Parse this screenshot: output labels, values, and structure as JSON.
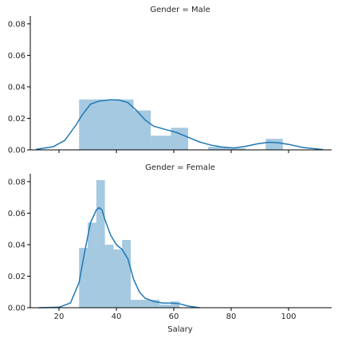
{
  "chart_data": {
    "type": "histogram-kde-facets",
    "x_label": "Salary",
    "x_ticks": [
      20,
      40,
      60,
      80,
      100
    ],
    "x_range": [
      10,
      115
    ],
    "y_ticks": [
      0.0,
      0.02,
      0.04,
      0.06,
      0.08
    ],
    "y_range": [
      0,
      0.085
    ],
    "colors": {
      "bar": "#1f77b4",
      "kde": "#1f77b4"
    },
    "facets": [
      {
        "title": "Gender = Male",
        "histogram": [
          {
            "x0": 27,
            "x1": 40,
            "density": 0.032
          },
          {
            "x0": 40,
            "x1": 46,
            "density": 0.032
          },
          {
            "x0": 46,
            "x1": 52,
            "density": 0.025
          },
          {
            "x0": 52,
            "x1": 59,
            "density": 0.009
          },
          {
            "x0": 59,
            "x1": 65,
            "density": 0.014
          },
          {
            "x0": 65,
            "x1": 72,
            "density": 0.0
          },
          {
            "x0": 72,
            "x1": 79,
            "density": 0.002
          },
          {
            "x0": 79,
            "x1": 85,
            "density": 0.001
          },
          {
            "x0": 85,
            "x1": 92,
            "density": 0.0
          },
          {
            "x0": 92,
            "x1": 98,
            "density": 0.007
          }
        ],
        "kde": [
          [
            12,
            0.0003
          ],
          [
            18,
            0.002
          ],
          [
            22,
            0.006
          ],
          [
            26,
            0.016
          ],
          [
            28,
            0.022
          ],
          [
            31,
            0.029
          ],
          [
            34,
            0.031
          ],
          [
            38,
            0.0318
          ],
          [
            41,
            0.0316
          ],
          [
            44,
            0.03
          ],
          [
            47,
            0.025
          ],
          [
            50,
            0.019
          ],
          [
            53,
            0.015
          ],
          [
            57,
            0.013
          ],
          [
            61,
            0.011
          ],
          [
            65,
            0.008
          ],
          [
            69,
            0.005
          ],
          [
            73,
            0.003
          ],
          [
            77,
            0.0018
          ],
          [
            81,
            0.0012
          ],
          [
            85,
            0.0022
          ],
          [
            89,
            0.0038
          ],
          [
            93,
            0.0048
          ],
          [
            96,
            0.0046
          ],
          [
            100,
            0.0035
          ],
          [
            105,
            0.0015
          ],
          [
            112,
            0.0002
          ]
        ]
      },
      {
        "title": "Gender = Female",
        "histogram": [
          {
            "x0": 27,
            "x1": 30,
            "density": 0.038
          },
          {
            "x0": 30,
            "x1": 33,
            "density": 0.054
          },
          {
            "x0": 33,
            "x1": 36,
            "density": 0.081
          },
          {
            "x0": 36,
            "x1": 39,
            "density": 0.04
          },
          {
            "x0": 39,
            "x1": 42,
            "density": 0.037
          },
          {
            "x0": 42,
            "x1": 45,
            "density": 0.043
          },
          {
            "x0": 45,
            "x1": 50,
            "density": 0.005
          },
          {
            "x0": 50,
            "x1": 55,
            "density": 0.005
          },
          {
            "x0": 55,
            "x1": 59,
            "density": 0.002
          },
          {
            "x0": 59,
            "x1": 62,
            "density": 0.004
          }
        ],
        "kde": [
          [
            13,
            0.0
          ],
          [
            20,
            0.0003
          ],
          [
            24,
            0.003
          ],
          [
            27,
            0.016
          ],
          [
            29,
            0.036
          ],
          [
            31,
            0.054
          ],
          [
            33,
            0.062
          ],
          [
            34,
            0.0635
          ],
          [
            35,
            0.062
          ],
          [
            36,
            0.056
          ],
          [
            38,
            0.046
          ],
          [
            40,
            0.04
          ],
          [
            42,
            0.037
          ],
          [
            44,
            0.031
          ],
          [
            46,
            0.018
          ],
          [
            48,
            0.01
          ],
          [
            50,
            0.006
          ],
          [
            53,
            0.004
          ],
          [
            56,
            0.003
          ],
          [
            59,
            0.003
          ],
          [
            62,
            0.0025
          ],
          [
            65,
            0.001
          ],
          [
            69,
            0.0
          ]
        ]
      }
    ]
  }
}
